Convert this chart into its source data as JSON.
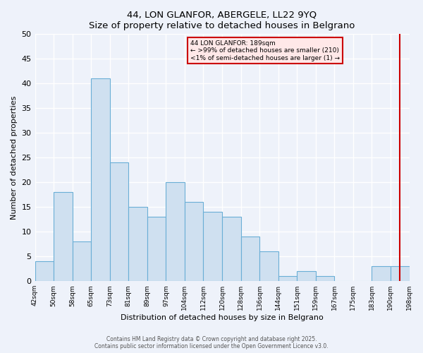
{
  "title": "44, LON GLANFOR, ABERGELE, LL22 9YQ",
  "subtitle": "Size of property relative to detached houses in Belgrano",
  "xlabel": "Distribution of detached houses by size in Belgrano",
  "ylabel": "Number of detached properties",
  "bin_labels": [
    "42sqm",
    "50sqm",
    "58sqm",
    "65sqm",
    "73sqm",
    "81sqm",
    "89sqm",
    "97sqm",
    "104sqm",
    "112sqm",
    "120sqm",
    "128sqm",
    "136sqm",
    "144sqm",
    "151sqm",
    "159sqm",
    "167sqm",
    "175sqm",
    "183sqm",
    "190sqm",
    "198sqm"
  ],
  "bar_heights": [
    4,
    18,
    8,
    41,
    24,
    15,
    13,
    20,
    16,
    14,
    13,
    9,
    6,
    1,
    2,
    1,
    0,
    0,
    3,
    3
  ],
  "bar_color": "#cfe0f0",
  "bar_edge_color": "#6aaed6",
  "ylim": [
    0,
    50
  ],
  "yticks": [
    0,
    5,
    10,
    15,
    20,
    25,
    30,
    35,
    40,
    45,
    50
  ],
  "vline_index": 19.0,
  "vline_color": "#cc0000",
  "annotation_title": "44 LON GLANFOR: 189sqm",
  "annotation_line1": "← >99% of detached houses are smaller (210)",
  "annotation_line2": "<1% of semi-detached houses are larger (1) →",
  "annotation_box_facecolor": "#ffe8e8",
  "annotation_border_color": "#cc0000",
  "footer_line1": "Contains HM Land Registry data © Crown copyright and database right 2025.",
  "footer_line2": "Contains public sector information licensed under the Open Government Licence v3.0.",
  "background_color": "#eef2fa",
  "grid_color": "#ffffff"
}
